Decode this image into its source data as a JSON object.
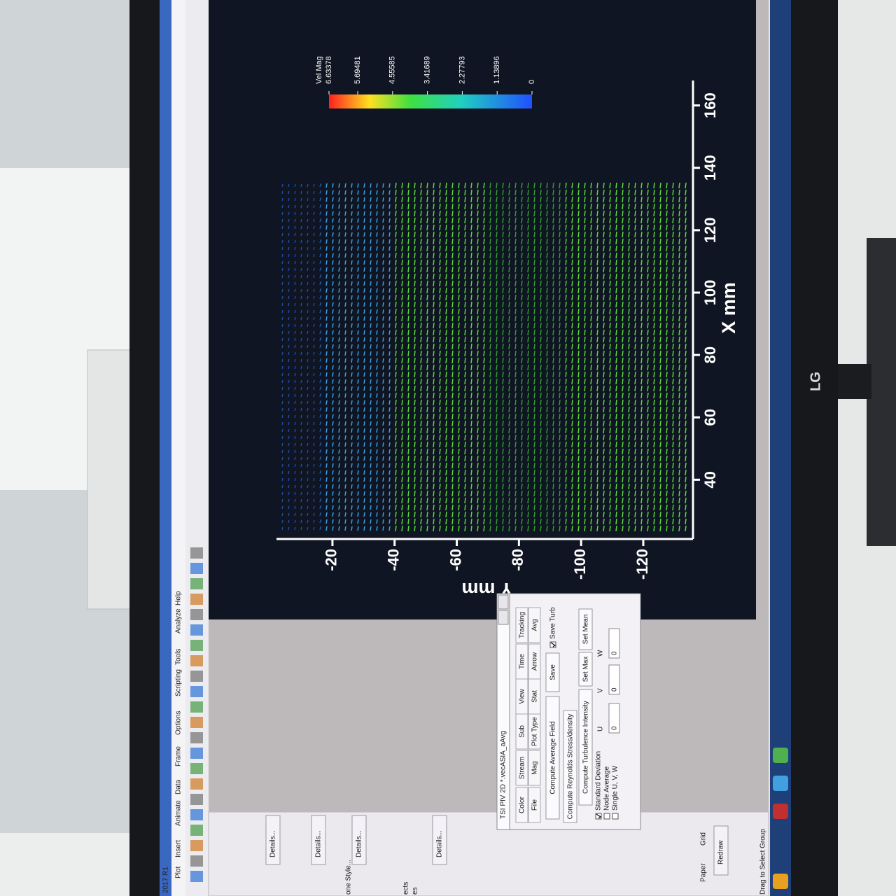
{
  "window": {
    "version": "2017 R1",
    "menu": [
      "Plot",
      "Insert",
      "Animate",
      "Data",
      "Frame",
      "Options",
      "Scripting",
      "Tools",
      "Analyze",
      "Help"
    ]
  },
  "sidebar": {
    "details": [
      "Details...",
      "Details...",
      "Details...",
      "Details..."
    ],
    "style": "one Style...",
    "items": [
      "ects",
      "es"
    ],
    "paper": "Paper",
    "grid": "Grid",
    "redraw": "Redraw"
  },
  "status": "Drag to Select Group",
  "plot": {
    "x_label": "X mm",
    "y_label": "Y mm",
    "xlim": [
      21,
      168
    ],
    "xticks": [
      40,
      60,
      80,
      100,
      120,
      140,
      160
    ],
    "ylim": [
      -136,
      -2
    ],
    "yticks": [
      -20,
      -40,
      -60,
      -80,
      -100,
      -120
    ],
    "colorbar": {
      "title": "Vel Mag",
      "levels": [
        6.63378,
        5.69481,
        4.55585,
        3.41689,
        2.27793,
        1.13896,
        0
      ]
    }
  },
  "dialog": {
    "title": "TSI PIV 2D *.vecASIA_aAvg",
    "tabs": [
      [
        "Color",
        "Stream",
        "Sub",
        "View",
        "Time",
        "Tracking"
      ],
      [
        "File",
        "Mag",
        "Plot Type",
        "Stat",
        "Arrow",
        "Avg"
      ]
    ],
    "buttons": [
      "Compute Average Field",
      "Save",
      "Compute Reynolds Stress/density",
      "Compute Turbulence Intensity",
      "Set Max",
      "Set Mean"
    ],
    "checks": [
      {
        "label": "Save Turb",
        "checked": true
      },
      {
        "label": "Standard Deviation",
        "checked": true
      },
      {
        "label": "Node Average",
        "checked": false
      },
      {
        "label": "Single U, V, W",
        "checked": false
      }
    ],
    "components": [
      "U",
      "V",
      "W"
    ],
    "inputs": [
      0,
      0,
      0
    ]
  },
  "monitor": {
    "brand": "LG"
  }
}
